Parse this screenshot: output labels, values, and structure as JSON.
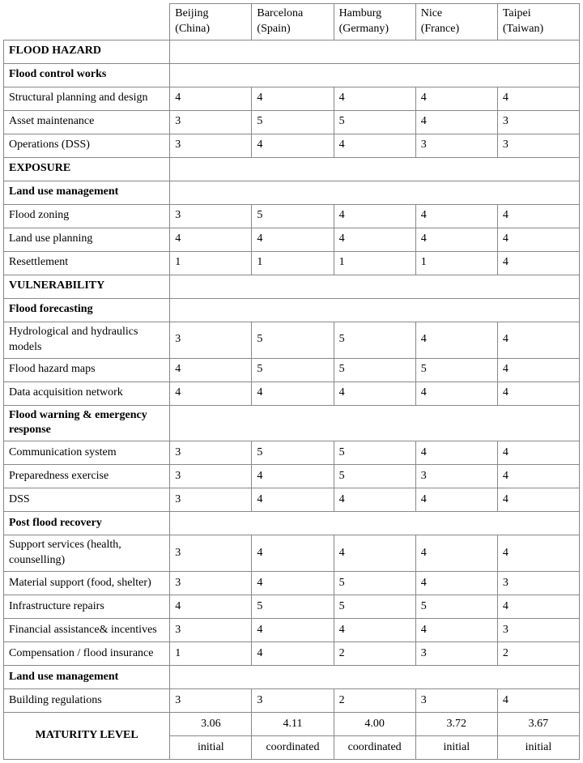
{
  "columns": [
    {
      "line1": "Beijing",
      "line2": "(China)"
    },
    {
      "line1": "Barcelona",
      "line2": "(Spain)"
    },
    {
      "line1": "Hamburg",
      "line2": "(Germany)"
    },
    {
      "line1": "Nice",
      "line2": "(France)"
    },
    {
      "line1": "Taipei",
      "line2": "(Taiwan)"
    }
  ],
  "sections": [
    {
      "title": "FLOOD HAZARD",
      "groups": [
        {
          "title": "Flood control works",
          "rows": [
            {
              "label": "Structural planning and design",
              "values": [
                4,
                4,
                4,
                4,
                4
              ]
            },
            {
              "label": "Asset maintenance",
              "values": [
                3,
                5,
                5,
                4,
                3
              ]
            },
            {
              "label": "Operations (DSS)",
              "values": [
                3,
                4,
                4,
                3,
                3
              ]
            }
          ]
        }
      ]
    },
    {
      "title": "EXPOSURE",
      "groups": [
        {
          "title": "Land use management",
          "rows": [
            {
              "label": "Flood zoning",
              "values": [
                3,
                5,
                4,
                4,
                4
              ]
            },
            {
              "label": "Land use planning",
              "values": [
                4,
                4,
                4,
                4,
                4
              ]
            },
            {
              "label": "Resettlement",
              "values": [
                1,
                1,
                1,
                1,
                4
              ]
            }
          ]
        }
      ]
    },
    {
      "title": "VULNERABILITY",
      "groups": [
        {
          "title": "Flood forecasting",
          "rows": [
            {
              "label": "Hydrological and hydraulics models",
              "values": [
                3,
                5,
                5,
                4,
                4
              ]
            },
            {
              "label": "Flood hazard maps",
              "values": [
                4,
                5,
                5,
                5,
                4
              ]
            },
            {
              "label": "Data acquisition network",
              "values": [
                4,
                4,
                4,
                4,
                4
              ]
            }
          ]
        },
        {
          "title": "Flood warning & emergency response",
          "rows": [
            {
              "label": "Communication system",
              "values": [
                3,
                5,
                5,
                4,
                4
              ]
            },
            {
              "label": "Preparedness exercise",
              "values": [
                3,
                4,
                5,
                3,
                4
              ]
            },
            {
              "label": "DSS",
              "values": [
                3,
                4,
                4,
                4,
                4
              ]
            }
          ]
        },
        {
          "title": "Post flood recovery",
          "rows": [
            {
              "label": "Support services (health, counselling)",
              "values": [
                3,
                4,
                4,
                4,
                4
              ]
            },
            {
              "label": "Material support (food, shelter)",
              "values": [
                3,
                4,
                5,
                4,
                3
              ]
            },
            {
              "label": "Infrastructure repairs",
              "values": [
                4,
                5,
                5,
                5,
                4
              ]
            },
            {
              "label": "Financial assistance& incentives",
              "values": [
                3,
                4,
                4,
                4,
                3
              ]
            },
            {
              "label": "Compensation / flood insurance",
              "values": [
                1,
                4,
                2,
                3,
                2
              ]
            }
          ]
        },
        {
          "title": "Land use management",
          "rows": [
            {
              "label": "Building regulations",
              "values": [
                3,
                3,
                2,
                3,
                4
              ]
            }
          ]
        }
      ]
    }
  ],
  "maturity": {
    "label": "MATURITY LEVEL",
    "scores": [
      "3.06",
      "4.11",
      "4.00",
      "3.72",
      "3.67"
    ],
    "levels": [
      "initial",
      "coordinated",
      "coordinated",
      "initial",
      "initial"
    ]
  }
}
